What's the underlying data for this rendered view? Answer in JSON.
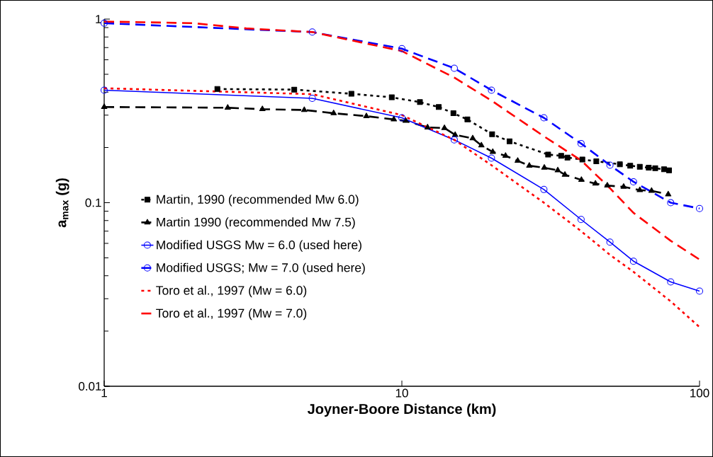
{
  "chart_data": {
    "type": "line",
    "xlabel": "Joyner-Boore Distance (km)",
    "ylabel": "a$_{max}$ (g)",
    "log": "xy",
    "xlim": [
      1,
      100
    ],
    "ylim": [
      0.01,
      1
    ],
    "xticks": [
      1,
      10,
      100
    ],
    "yticks": [
      0.01,
      0.1,
      1
    ],
    "grid": false,
    "legend": "bottom left",
    "series": [
      {
        "name": "Martin, 1990 (recommended Mw 6.0)",
        "color": "#000000",
        "marker": "square",
        "line_style": "dotted",
        "x": [
          2.4,
          4.35,
          6.77,
          9.25,
          11.5,
          13.3,
          14.9,
          16.6,
          20.1,
          23,
          31,
          34.3,
          36,
          40.4,
          45,
          54,
          58.5,
          63,
          67.5,
          71,
          76,
          79
        ],
        "values": [
          0.416,
          0.413,
          0.392,
          0.375,
          0.353,
          0.332,
          0.307,
          0.284,
          0.236,
          0.216,
          0.183,
          0.18,
          0.176,
          0.172,
          0.168,
          0.162,
          0.159,
          0.157,
          0.155,
          0.154,
          0.152,
          0.15
        ]
      },
      {
        "name": "Martin 1990 (recommended Mw 7.5)",
        "color": "#000000",
        "marker": "triangle",
        "line_style": "dashed",
        "x": [
          1,
          2.6,
          3.4,
          4.7,
          5.9,
          7.6,
          9.4,
          10.3,
          12.2,
          13.9,
          15.1,
          17.3,
          18.5,
          20.2,
          22.3,
          24.5,
          26.8,
          30.1,
          33.4,
          35.3,
          40.1,
          44.7,
          49,
          55.6,
          63,
          69,
          78.5
        ],
        "values": [
          0.332,
          0.329,
          0.323,
          0.32,
          0.307,
          0.296,
          0.284,
          0.279,
          0.257,
          0.255,
          0.234,
          0.224,
          0.205,
          0.189,
          0.18,
          0.169,
          0.159,
          0.155,
          0.15,
          0.142,
          0.133,
          0.127,
          0.124,
          0.122,
          0.117,
          0.116,
          0.111
        ]
      },
      {
        "name": "Modified USGS Mw = 6.0 (used here)",
        "color": "#0000ff",
        "marker": "circle",
        "line_style": "solid",
        "x": [
          1,
          5,
          10,
          15,
          20,
          30,
          40,
          50,
          60,
          80,
          100
        ],
        "values": [
          0.41,
          0.37,
          0.29,
          0.22,
          0.175,
          0.118,
          0.081,
          0.061,
          0.048,
          0.037,
          0.033
        ]
      },
      {
        "name": "Modified USGS; Mw = 7.0 (used here)",
        "color": "#0000ff",
        "marker": "circle",
        "line_style": "dashed",
        "x": [
          1,
          5,
          10,
          15,
          20,
          30,
          40,
          50,
          60,
          80,
          100
        ],
        "values": [
          0.95,
          0.85,
          0.69,
          0.54,
          0.41,
          0.29,
          0.21,
          0.16,
          0.13,
          0.1,
          0.093
        ]
      },
      {
        "name": "Toro et al., 1997 (Mw = 6.0)",
        "color": "#ff0000",
        "marker": "none",
        "line_style": "dotted",
        "x": [
          1,
          5,
          10,
          15,
          20,
          30,
          40,
          50,
          60,
          80,
          100
        ],
        "values": [
          0.42,
          0.39,
          0.3,
          0.22,
          0.16,
          0.1,
          0.07,
          0.052,
          0.042,
          0.029,
          0.021
        ]
      },
      {
        "name": "Toro et al., 1997 (Mw = 7.0)",
        "color": "#ff0000",
        "marker": "none",
        "line_style": "dashed",
        "x": [
          1,
          2,
          3,
          5,
          10,
          15,
          20,
          30,
          40,
          50,
          60,
          80,
          100
        ],
        "values": [
          0.97,
          0.95,
          0.89,
          0.85,
          0.67,
          0.48,
          0.36,
          0.23,
          0.17,
          0.12,
          0.088,
          0.062,
          0.049
        ]
      }
    ]
  }
}
